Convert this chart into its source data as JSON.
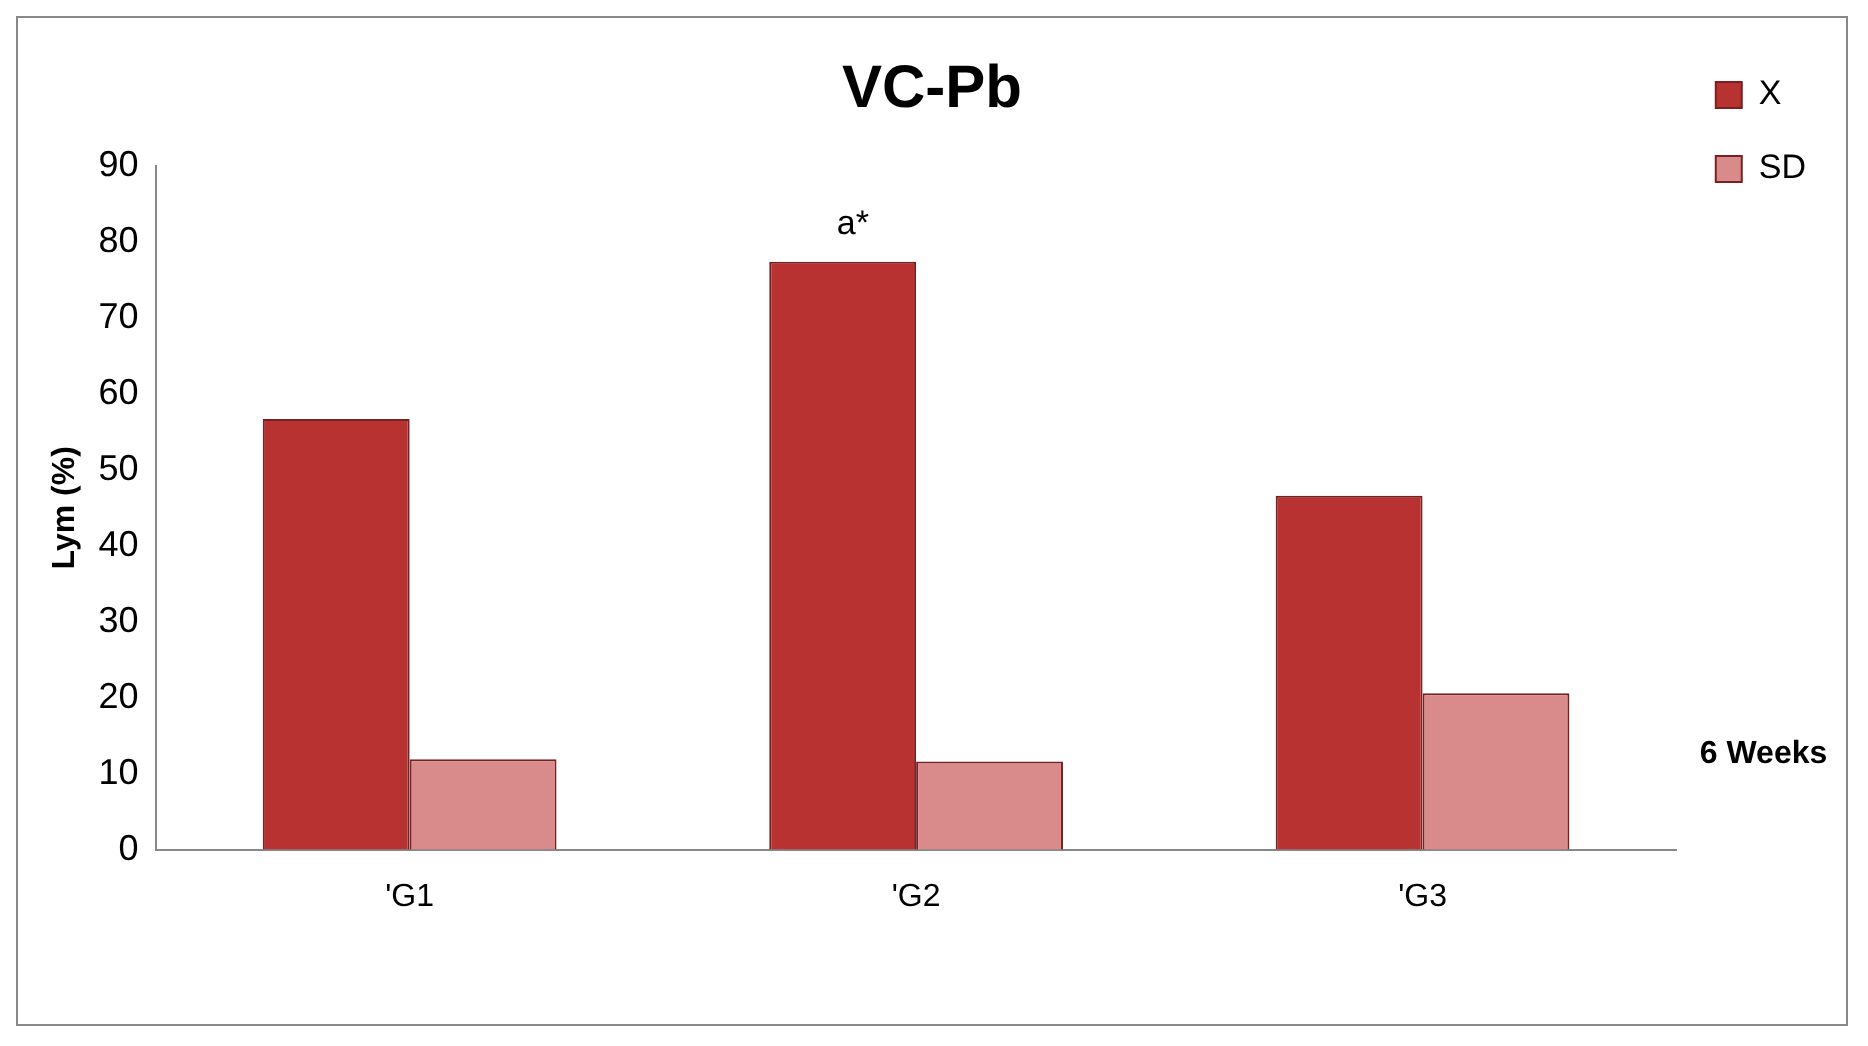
{
  "chart_data": {
    "type": "bar",
    "title": "VC-Pb",
    "ylabel": "Lym (%)",
    "categories": [
      "'G1",
      "'G2",
      "'G3"
    ],
    "series": [
      {
        "name": "X",
        "color": "#b83232",
        "values": [
          56.7,
          77.4,
          46.6
        ]
      },
      {
        "name": "SD",
        "color": "#d98a8a",
        "values": [
          11.9,
          11.6,
          20.6
        ]
      }
    ],
    "ylim": [
      0,
      90
    ],
    "yticks": [
      0,
      10,
      20,
      30,
      40,
      50,
      60,
      70,
      80,
      90
    ],
    "grid": false,
    "legend": "top right",
    "annotations": [
      {
        "text": "a*",
        "x": "'G2",
        "y": 77.4
      },
      "6 Weeks"
    ]
  }
}
